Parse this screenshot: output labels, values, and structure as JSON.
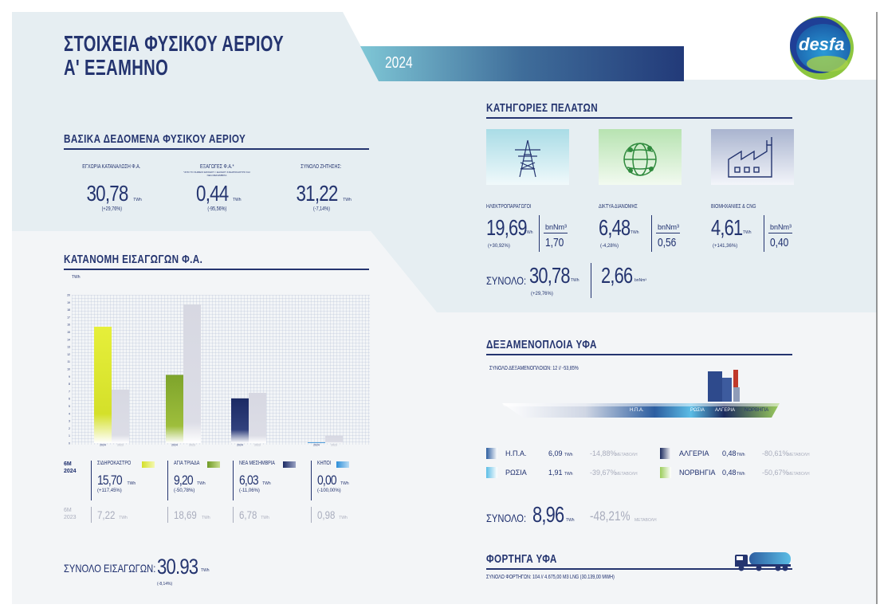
{
  "header": {
    "title_line1": "ΣΤΟΙΧΕΙΑ ΦΥΣΙΚΟΥ ΑΕΡΙΟΥ",
    "title_line2": "Α' ΕΞΑΜΗΝΟ",
    "year": "2024",
    "logo_text": "desfa"
  },
  "basic": {
    "title": "ΒΑΣΙΚΑ ΔΕΔΟΜΕΝΑ ΦΥΣΙΚΟΥ ΑΕΡΙΟΥ",
    "items": [
      {
        "label": "ΕΓΧΩΡΙΑ ΚΑΤΑΝΑΛΩΣΗ Φ.Α.",
        "note": "",
        "value": "30,78",
        "unit": "TWh",
        "change": "(+29,76%)"
      },
      {
        "label": "ΕΞΑΓΩΓΕΣ Φ.Α.*",
        "note": "*ΑΠΟ ΤΟ ΣΗΜΕΙΟ ΕΙΣΟΔΟΥ / ΕΞΟΔΟΥ ΣΙΔΗΡΟΚΑΣΤΡΟ ΚΑΙ ΝΕΑ ΜΕΣΗΜΒΡΙΑ",
        "value": "0,44",
        "unit": "TWh",
        "change": "(-95,56%)"
      },
      {
        "label": "ΣΥΝΟΛΟ ΖΗΤΗΣΗΣ:",
        "note": "",
        "value": "31,22",
        "unit": "TWh",
        "change": "(-7,14%)"
      }
    ]
  },
  "imports": {
    "title": "ΚΑΤΑΝΟΜΗ ΕΙΣΑΓΩΓΩΝ Φ.Α.",
    "period_2024": "6M\n2024",
    "period_2023": "6M\n2023",
    "points": [
      {
        "name": "ΣΙΔΗΡΟΚΑΣΤΡΟ",
        "v2024": "15,70",
        "unit": "TWh",
        "change": "(+117,45%)",
        "v2023": "7,22",
        "color": "#d4e02a"
      },
      {
        "name": "ΑΓΙΑ ΤΡΙΑΔΑ",
        "v2024": "9,20",
        "unit": "TWh",
        "change": "(-50,78%)",
        "v2023": "18,69",
        "color": "#86ad2e"
      },
      {
        "name": "ΝΕΑ ΜΕΣΗΜΒΡΙΑ",
        "v2024": "6,03",
        "unit": "TWh",
        "change": "(-11,06%)",
        "v2023": "6,78",
        "color": "#1d2b6a"
      },
      {
        "name": "ΚΗΠΟΙ",
        "v2024": "0,00",
        "unit": "TWh",
        "change": "(-100,00%)",
        "v2023": "0,98",
        "color": "#2c8ed8"
      }
    ],
    "total_label": "ΣΥΝΟΛΟ ΕΙΣΑΓΩΓΩΝ:",
    "total_value": "30.93",
    "total_unit": "TWh",
    "total_change": "(-8,14%)"
  },
  "chart_data": {
    "type": "bar",
    "ylabel": "TWh",
    "ylim": [
      0,
      20
    ],
    "yticks": [
      0,
      1,
      2,
      3,
      4,
      5,
      6,
      7,
      8,
      9,
      10,
      11,
      12,
      13,
      14,
      15,
      16,
      17,
      18,
      19,
      20
    ],
    "categories": [
      "ΣΙΔΗΡΟΚΑΣΤΡΟ",
      "ΑΓΙΑ ΤΡΙΑΔΑ",
      "ΝΕΑ ΜΕΣΗΜΒΡΙΑ",
      "ΚΗΠΟΙ"
    ],
    "series": [
      {
        "name": "2024",
        "values": [
          15.7,
          9.2,
          6.03,
          0.0
        ]
      },
      {
        "name": "2023",
        "values": [
          7.22,
          18.69,
          6.78,
          0.98
        ]
      }
    ],
    "grid": true
  },
  "customers": {
    "title": "ΚΑΤΗΓΟΡΙΕΣ ΠΕΛΑΤΩΝ",
    "items": [
      {
        "label": "ΗΛΕΚΤΡΟΠΑΡΑΓΩΓΟΙ",
        "value": "19,69",
        "unit": "TWh",
        "change": "(+30,92%)",
        "bn_unit": "bnNm³",
        "bn_value": "1,70",
        "icon": "power-tower-icon"
      },
      {
        "label": "ΔΙΚΤΥΑ ΔΙΑΝΟΜΗΣ",
        "value": "6,48",
        "unit": "TWh",
        "change": "(-4,28%)",
        "bn_unit": "bnNm³",
        "bn_value": "0,56",
        "icon": "globe-network-icon"
      },
      {
        "label": "ΒΙΟΜΗΧΑΝΙΕΣ & CNG",
        "value": "4,61",
        "unit": "TWh",
        "change": "(+141,36%)",
        "bn_unit": "bnNm³",
        "bn_value": "0,40",
        "icon": "factory-icon"
      }
    ],
    "total_label": "ΣΥΝΟΛΟ:",
    "total_value": "30,78",
    "total_unit": "TWh",
    "total_change": "(+29,76%)",
    "total_bn_value": "2,66",
    "total_bn_unit": "bnNm³"
  },
  "tankers": {
    "title": "ΔΕΞΑΜΕΝΟΠΛΟΙΑ ΥΦΑ",
    "subtitle": "ΣΥΝΟΛΟ ΔΕΞΑΜΕΝΟΠΛΟΙΩΝ: 12   //   -53,85%",
    "ship_labels": [
      "Η.Π.Α.",
      "ΡΩΣΙΑ",
      "ΑΛΓΕΡΙΑ",
      "ΝΟΡΒΗΓΙΑ"
    ],
    "rows": [
      {
        "name": "Η.Π.Α.",
        "value": "6,09",
        "unit": "TWh",
        "change": "-14,88%",
        "change_label": "ΜΕΤΑΒΟΛΗ",
        "color": "#2d5ea0"
      },
      {
        "name": "ΡΩΣΙΑ",
        "value": "1,91",
        "unit": "TWh",
        "change": "-39,67%",
        "change_label": "ΜΕΤΑΒΟΛΗ",
        "color": "#5bbde6"
      },
      {
        "name": "ΑΛΓΕΡΙΑ",
        "value": "0,48",
        "unit": "TWh",
        "change": "-80,61%",
        "change_label": "ΜΕΤΑΒΟΛΗ",
        "color": "#1b2a5e"
      },
      {
        "name": "ΝΟΡΒΗΓΙΑ",
        "value": "0,48",
        "unit": "TWh",
        "change": "-50,67%",
        "change_label": "ΜΕΤΑΒΟΛΗ",
        "color": "#9bcc5b"
      }
    ],
    "total_label": "ΣΥΝΟΛΟ:",
    "total_value": "8,96",
    "total_unit": "TWh",
    "total_change": "-48,21%",
    "total_change_label": "ΜΕΤΑΒΟΛΗ"
  },
  "trucks": {
    "title": "ΦΟΡΤΗΓΑ ΥΦΑ",
    "subtitle": "ΣΥΝΟΛΟ ΦΟΡΤΗΓΩΝ: 104  // 4.675,00 M3 LNG  (30.139,00 MWH)"
  }
}
